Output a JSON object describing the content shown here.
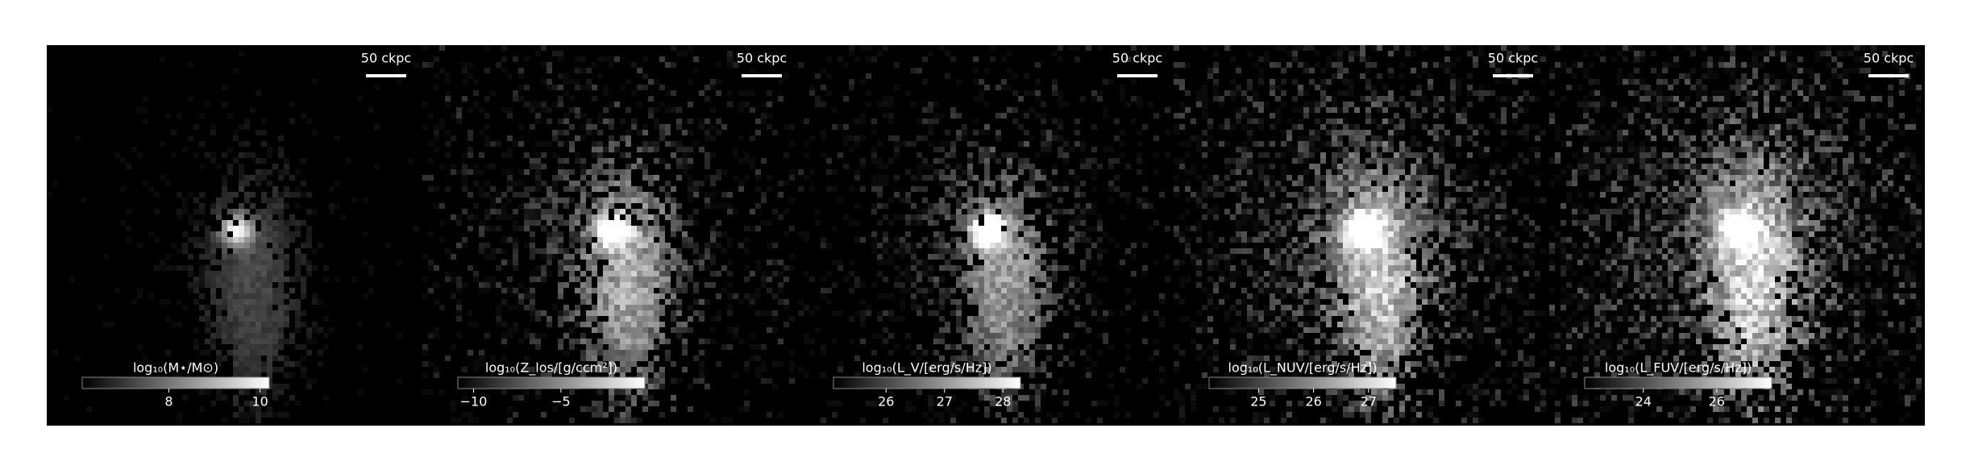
{
  "chart_data": [
    {
      "type": "image",
      "scale_bar_label": "50 ckpc",
      "colorbar_label": "log₁₀(M⋆/M⊙)",
      "clim": [
        6.1,
        10.2
      ],
      "cticks": [
        8,
        10
      ],
      "spread": 0.1
    },
    {
      "type": "image",
      "scale_bar_label": "50 ckpc",
      "colorbar_label": "log₁₀(Z_los/[g/ccm²])",
      "clim": [
        -10.9,
        -0.2
      ],
      "cticks": [
        {
          "value": -10,
          "label": "−10"
        },
        {
          "value": -5,
          "label": "−5"
        }
      ],
      "spread": 0.6
    },
    {
      "type": "image",
      "scale_bar_label": "50 ckpc",
      "colorbar_label": "log₁₀(L_V/[erg/s/Hz])",
      "clim": [
        25.1,
        28.3
      ],
      "cticks": [
        26,
        27,
        28
      ],
      "spread": 0.5
    },
    {
      "type": "image",
      "scale_bar_label": "50 ckpc",
      "colorbar_label": "log₁₀(L_NUV/[erg/s/Hz])",
      "clim": [
        24.1,
        27.5
      ],
      "cticks": [
        25,
        26,
        27
      ],
      "spread": 0.8
    },
    {
      "type": "image",
      "scale_bar_label": "50 ckpc",
      "colorbar_label": "log₁₀(L_FUV/[erg/s/Hz])",
      "clim": [
        22.4,
        27.5
      ],
      "cticks": [
        24,
        26
      ],
      "spread": 0.9
    }
  ]
}
